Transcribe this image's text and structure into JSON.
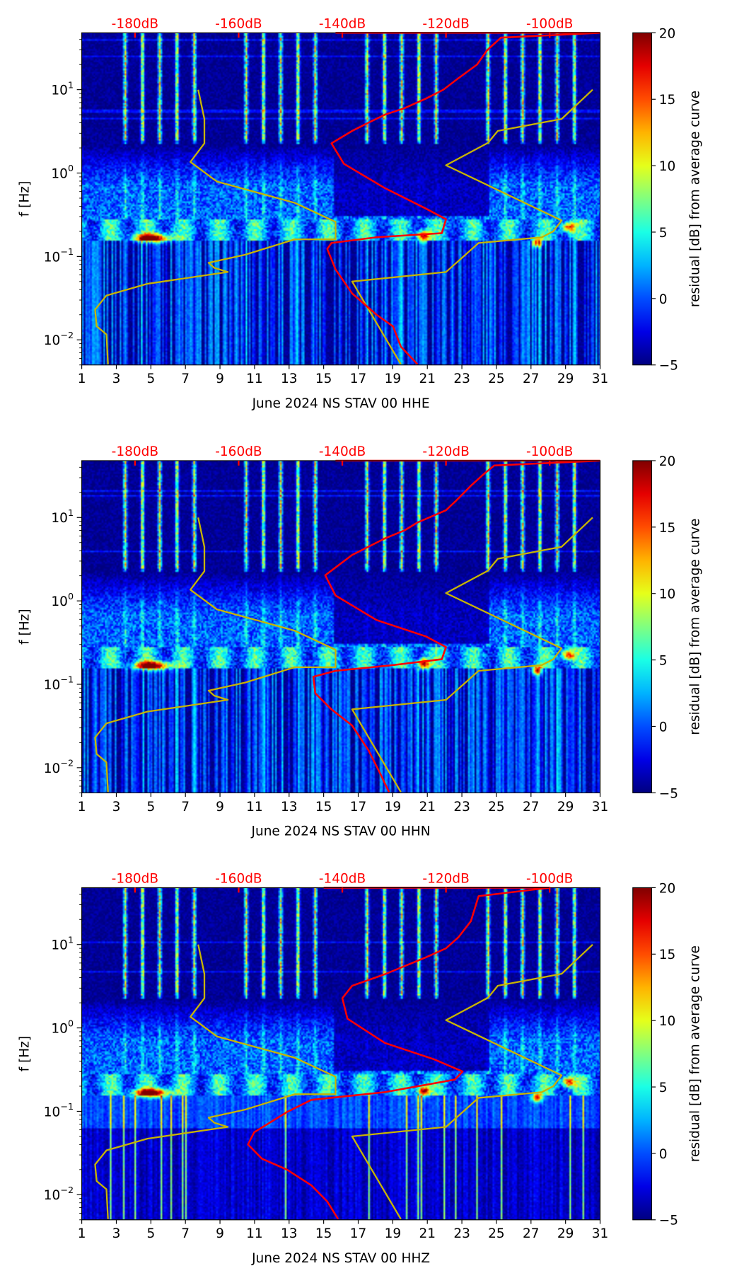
{
  "colors": {
    "psd": "#ff0000",
    "model": "#c8b400",
    "top_labels": "#ff0000"
  },
  "chart_data": [
    {
      "type": "heatmap",
      "xlabel": "June 2024 NS STAV 00 HHE",
      "ylabel": "f [Hz]",
      "xlim": [
        1,
        31
      ],
      "ylim": [
        0.005,
        48
      ],
      "yscale": "log",
      "xticks": [
        "1",
        "3",
        "5",
        "7",
        "9",
        "11",
        "13",
        "15",
        "17",
        "19",
        "21",
        "23",
        "25",
        "27",
        "29",
        "31"
      ],
      "yticks": [
        {
          "value": 10,
          "base": "10",
          "exp": "1"
        },
        {
          "value": 1,
          "base": "10",
          "exp": "0"
        },
        {
          "value": 0.1,
          "base": "10",
          "exp": "−1"
        },
        {
          "value": 0.01,
          "base": "10",
          "exp": "−2"
        }
      ],
      "top_axis": [
        {
          "db": -180,
          "label": "-180dB"
        },
        {
          "db": -160,
          "label": "-160dB"
        },
        {
          "db": -140,
          "label": "-140dB"
        },
        {
          "db": -120,
          "label": "-120dB"
        },
        {
          "db": -100,
          "label": "-100dB"
        }
      ],
      "colorbar": {
        "label": "residual [dB] from average curve",
        "range": [
          -5,
          20
        ],
        "ticks": [
          "−5",
          "0",
          "5",
          "10",
          "15",
          "20"
        ]
      },
      "curves": {
        "psd": [
          [
            -141.3,
            48
          ],
          [
            -90.1,
            48
          ],
          [
            -109.4,
            42
          ],
          [
            -112,
            30
          ],
          [
            -114,
            20
          ],
          [
            -117.6,
            13.7
          ],
          [
            -120.5,
            10
          ],
          [
            -123.9,
            7.8
          ],
          [
            -128,
            6
          ],
          [
            -131.8,
            5.0
          ],
          [
            -135,
            4
          ],
          [
            -138.1,
            3.2
          ],
          [
            -142.1,
            2.27
          ],
          [
            -139.7,
            1.29
          ],
          [
            -131.8,
            0.66
          ],
          [
            -123.9,
            0.375
          ],
          [
            -120,
            0.28
          ],
          [
            -120.8,
            0.19
          ],
          [
            -133.4,
            0.17
          ],
          [
            -142.1,
            0.145
          ],
          [
            -142.9,
            0.123
          ],
          [
            -141.3,
            0.07
          ],
          [
            -138.1,
            0.036
          ],
          [
            -133.4,
            0.02
          ],
          [
            -130.2,
            0.0145
          ],
          [
            -128.7,
            0.0083
          ],
          [
            -125.5,
            0.0051
          ]
        ],
        "low_model": [
          [
            -167.8,
            10
          ],
          [
            -166.6,
            4.45
          ],
          [
            -166.6,
            2.27
          ],
          [
            -169.3,
            1.36
          ],
          [
            -164.2,
            0.79
          ],
          [
            -149.2,
            0.44
          ],
          [
            -141.3,
            0.26
          ],
          [
            -141.3,
            0.16
          ],
          [
            -149.2,
            0.16
          ],
          [
            -158.7,
            0.105
          ],
          [
            -165.8,
            0.084
          ],
          [
            -164.7,
            0.073
          ],
          [
            -162.1,
            0.065
          ],
          [
            -177.6,
            0.047
          ],
          [
            -185.5,
            0.034
          ],
          [
            -187.7,
            0.023
          ],
          [
            -187.4,
            0.0146
          ],
          [
            -185.5,
            0.0116
          ],
          [
            -185.2,
            0.0051
          ]
        ],
        "high_model": [
          [
            -91.7,
            10
          ],
          [
            -97.7,
            4.45
          ],
          [
            -110.0,
            3.2
          ],
          [
            -111.9,
            2.3
          ],
          [
            -120.0,
            1.24
          ],
          [
            -97.7,
            0.27
          ],
          [
            -99.3,
            0.2
          ],
          [
            -101.5,
            0.17
          ],
          [
            -113.7,
            0.145
          ],
          [
            -120.0,
            0.065
          ],
          [
            -138.1,
            0.05
          ],
          [
            -128.7,
            0.0051
          ]
        ]
      }
    },
    {
      "type": "heatmap",
      "xlabel": "June 2024 NS STAV 00 HHN",
      "ylabel": "f [Hz]",
      "xlim": [
        1,
        31
      ],
      "ylim": [
        0.005,
        48
      ],
      "yscale": "log",
      "xticks": [
        "1",
        "3",
        "5",
        "7",
        "9",
        "11",
        "13",
        "15",
        "17",
        "19",
        "21",
        "23",
        "25",
        "27",
        "29",
        "31"
      ],
      "yticks": [
        {
          "value": 10,
          "base": "10",
          "exp": "1"
        },
        {
          "value": 1,
          "base": "10",
          "exp": "0"
        },
        {
          "value": 0.1,
          "base": "10",
          "exp": "−1"
        },
        {
          "value": 0.01,
          "base": "10",
          "exp": "−2"
        }
      ],
      "top_axis": [
        {
          "db": -180,
          "label": "-180dB"
        },
        {
          "db": -160,
          "label": "-160dB"
        },
        {
          "db": -140,
          "label": "-140dB"
        },
        {
          "db": -120,
          "label": "-120dB"
        },
        {
          "db": -100,
          "label": "-100dB"
        }
      ],
      "colorbar": {
        "label": "residual [dB] from average curve",
        "range": [
          -5,
          20
        ],
        "ticks": [
          "−5",
          "0",
          "5",
          "10",
          "15",
          "20"
        ]
      },
      "curves": {
        "psd": [
          [
            -141.3,
            48
          ],
          [
            -90.1,
            48
          ],
          [
            -110.7,
            42
          ],
          [
            -113,
            32
          ],
          [
            -115.2,
            24
          ],
          [
            -118,
            16
          ],
          [
            -120.0,
            12.2
          ],
          [
            -125.5,
            8.7
          ],
          [
            -128,
            7
          ],
          [
            -131.8,
            5.6
          ],
          [
            -138.1,
            3.55
          ],
          [
            -143.3,
            2.03
          ],
          [
            -141.3,
            1.16
          ],
          [
            -133.4,
            0.59
          ],
          [
            -123.9,
            0.375
          ],
          [
            -120,
            0.28
          ],
          [
            -120.8,
            0.2
          ],
          [
            -130.2,
            0.17
          ],
          [
            -141.3,
            0.145
          ],
          [
            -145.6,
            0.123
          ],
          [
            -145.2,
            0.078
          ],
          [
            -142.1,
            0.05
          ],
          [
            -138.1,
            0.032
          ],
          [
            -134.9,
            0.016
          ],
          [
            -132.6,
            0.0083
          ],
          [
            -131,
            0.0051
          ]
        ],
        "low_model": [
          [
            -167.8,
            10
          ],
          [
            -166.6,
            4.45
          ],
          [
            -166.6,
            2.27
          ],
          [
            -169.3,
            1.36
          ],
          [
            -164.2,
            0.79
          ],
          [
            -149.2,
            0.44
          ],
          [
            -141.3,
            0.26
          ],
          [
            -141.3,
            0.16
          ],
          [
            -149.2,
            0.16
          ],
          [
            -158.7,
            0.105
          ],
          [
            -165.8,
            0.084
          ],
          [
            -164.7,
            0.073
          ],
          [
            -162.1,
            0.065
          ],
          [
            -177.6,
            0.047
          ],
          [
            -185.5,
            0.034
          ],
          [
            -187.7,
            0.023
          ],
          [
            -187.4,
            0.0146
          ],
          [
            -185.5,
            0.0116
          ],
          [
            -185.2,
            0.0051
          ]
        ],
        "high_model": [
          [
            -91.7,
            10
          ],
          [
            -97.7,
            4.45
          ],
          [
            -110.0,
            3.2
          ],
          [
            -111.9,
            2.3
          ],
          [
            -120.0,
            1.24
          ],
          [
            -97.7,
            0.27
          ],
          [
            -99.3,
            0.2
          ],
          [
            -101.5,
            0.17
          ],
          [
            -113.7,
            0.145
          ],
          [
            -120.0,
            0.065
          ],
          [
            -138.1,
            0.05
          ],
          [
            -128.7,
            0.0051
          ]
        ]
      }
    },
    {
      "type": "heatmap",
      "xlabel": "June 2024 NS STAV 00 HHZ",
      "ylabel": "f [Hz]",
      "xlim": [
        1,
        31
      ],
      "ylim": [
        0.005,
        48
      ],
      "yscale": "log",
      "xticks": [
        "1",
        "3",
        "5",
        "7",
        "9",
        "11",
        "13",
        "15",
        "17",
        "19",
        "21",
        "23",
        "25",
        "27",
        "29",
        "31"
      ],
      "yticks": [
        {
          "value": 10,
          "base": "10",
          "exp": "1"
        },
        {
          "value": 1,
          "base": "10",
          "exp": "0"
        },
        {
          "value": 0.1,
          "base": "10",
          "exp": "−1"
        },
        {
          "value": 0.01,
          "base": "10",
          "exp": "−2"
        }
      ],
      "top_axis": [
        {
          "db": -180,
          "label": "-180dB"
        },
        {
          "db": -160,
          "label": "-160dB"
        },
        {
          "db": -140,
          "label": "-140dB"
        },
        {
          "db": -120,
          "label": "-120dB"
        },
        {
          "db": -100,
          "label": "-100dB"
        }
      ],
      "colorbar": {
        "label": "residual [dB] from average curve",
        "range": [
          -5,
          20
        ],
        "ticks": [
          "−5",
          "0",
          "5",
          "10",
          "15",
          "20"
        ]
      },
      "curves": {
        "psd": [
          [
            -143.6,
            48
          ],
          [
            -100,
            48
          ],
          [
            -113.7,
            38
          ],
          [
            -115.2,
            19
          ],
          [
            -117.6,
            12.2
          ],
          [
            -120,
            9
          ],
          [
            -123.9,
            7
          ],
          [
            -131.8,
            4.4
          ],
          [
            -138.1,
            3.2
          ],
          [
            -140,
            2.27
          ],
          [
            -139,
            1.29
          ],
          [
            -131.8,
            0.66
          ],
          [
            -122.3,
            0.42
          ],
          [
            -116.8,
            0.3
          ],
          [
            -118.3,
            0.24
          ],
          [
            -131.8,
            0.17
          ],
          [
            -146,
            0.137
          ],
          [
            -150.7,
            0.098
          ],
          [
            -157,
            0.056
          ],
          [
            -158.2,
            0.04
          ],
          [
            -155.5,
            0.027
          ],
          [
            -150.7,
            0.02
          ],
          [
            -146,
            0.013
          ],
          [
            -142.9,
            0.0083
          ],
          [
            -140.8,
            0.0051
          ]
        ],
        "low_model": [
          [
            -167.8,
            10
          ],
          [
            -166.6,
            4.45
          ],
          [
            -166.6,
            2.27
          ],
          [
            -169.3,
            1.36
          ],
          [
            -164.2,
            0.79
          ],
          [
            -149.2,
            0.44
          ],
          [
            -141.3,
            0.26
          ],
          [
            -141.3,
            0.16
          ],
          [
            -149.2,
            0.16
          ],
          [
            -158.7,
            0.105
          ],
          [
            -165.8,
            0.084
          ],
          [
            -164.7,
            0.073
          ],
          [
            -162.1,
            0.065
          ],
          [
            -177.6,
            0.047
          ],
          [
            -185.5,
            0.034
          ],
          [
            -187.7,
            0.023
          ],
          [
            -187.4,
            0.0146
          ],
          [
            -185.5,
            0.0116
          ],
          [
            -185.2,
            0.0051
          ]
        ],
        "high_model": [
          [
            -91.7,
            10
          ],
          [
            -97.7,
            4.45
          ],
          [
            -110.0,
            3.2
          ],
          [
            -111.9,
            2.3
          ],
          [
            -120.0,
            1.24
          ],
          [
            -97.7,
            0.27
          ],
          [
            -99.3,
            0.2
          ],
          [
            -101.5,
            0.17
          ],
          [
            -113.7,
            0.145
          ],
          [
            -120.0,
            0.065
          ],
          [
            -138.1,
            0.05
          ],
          [
            -128.7,
            0.0051
          ]
        ]
      }
    }
  ]
}
